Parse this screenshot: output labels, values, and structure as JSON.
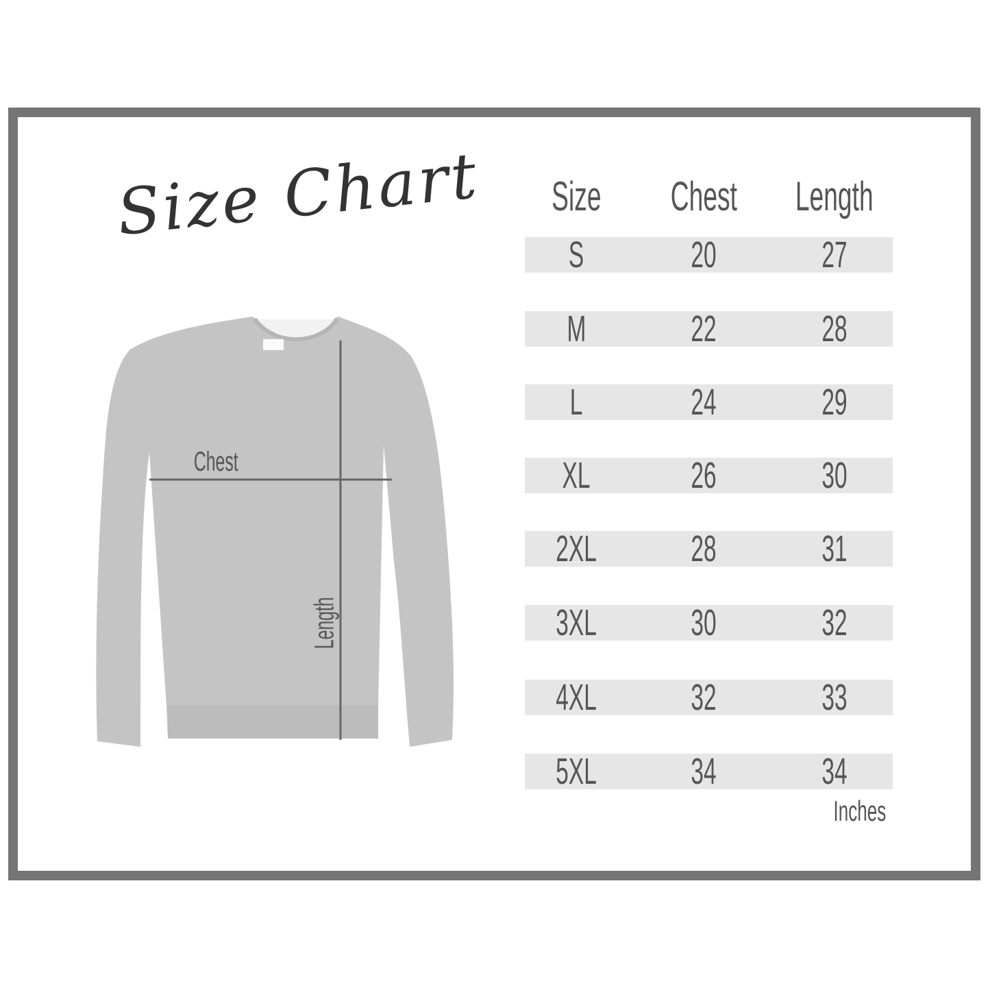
{
  "title": "Size Chart",
  "columns": [
    "Size",
    "Chest",
    "Length"
  ],
  "rows": [
    [
      "S",
      "20",
      "27"
    ],
    [
      "M",
      "22",
      "28"
    ],
    [
      "L",
      "24",
      "29"
    ],
    [
      "XL",
      "26",
      "30"
    ],
    [
      "2XL",
      "28",
      "31"
    ],
    [
      "3XL",
      "30",
      "32"
    ],
    [
      "4XL",
      "32",
      "33"
    ],
    [
      "5XL",
      "34",
      "34"
    ]
  ],
  "units": "Inches",
  "diagram": {
    "chest_label": "Chest",
    "length_label": "Length"
  },
  "colors": {
    "frame": "#757575",
    "row_band": "#e6e6e6",
    "text": "#555555",
    "garment": "#c4c4c4"
  }
}
